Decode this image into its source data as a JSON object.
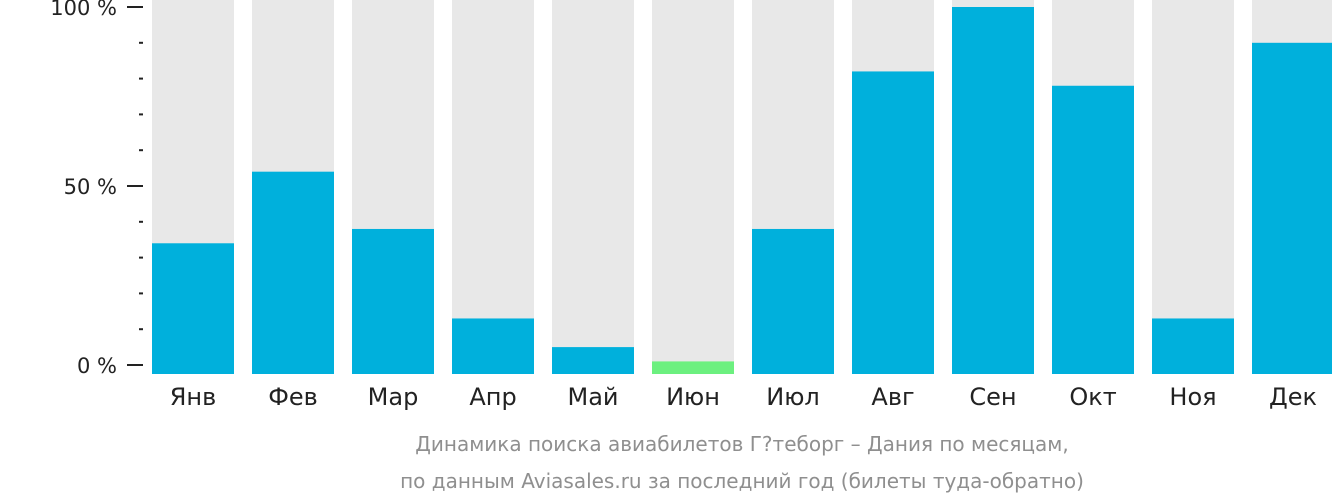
{
  "chart_data": {
    "type": "bar",
    "caption": [
      "Динамика поиска авиабилетов Г?теборг – Дания по месяцам,",
      "по данным Aviasales.ru за последний год (билеты туда-обратно)"
    ],
    "categories": [
      "Янв",
      "Фев",
      "Мар",
      "Апр",
      "Май",
      "Июн",
      "Июл",
      "Авг",
      "Сен",
      "Окт",
      "Ноя",
      "Дек"
    ],
    "values": [
      34,
      54,
      38,
      13,
      5,
      1,
      38,
      82,
      100,
      78,
      13,
      90
    ],
    "highlight_index": 5,
    "ylim": [
      0,
      100
    ],
    "y_ticks": [
      {
        "value": 0,
        "label": "0 %"
      },
      {
        "value": 50,
        "label": "50 %"
      },
      {
        "value": 100,
        "label": "100 %"
      }
    ],
    "y_minor_step": 10,
    "colors": {
      "bar": "#00b0dc",
      "highlight": "#6cf07f",
      "track": "#e8e8e8",
      "axis": "#222222",
      "caption": "#8f8f8f"
    }
  }
}
